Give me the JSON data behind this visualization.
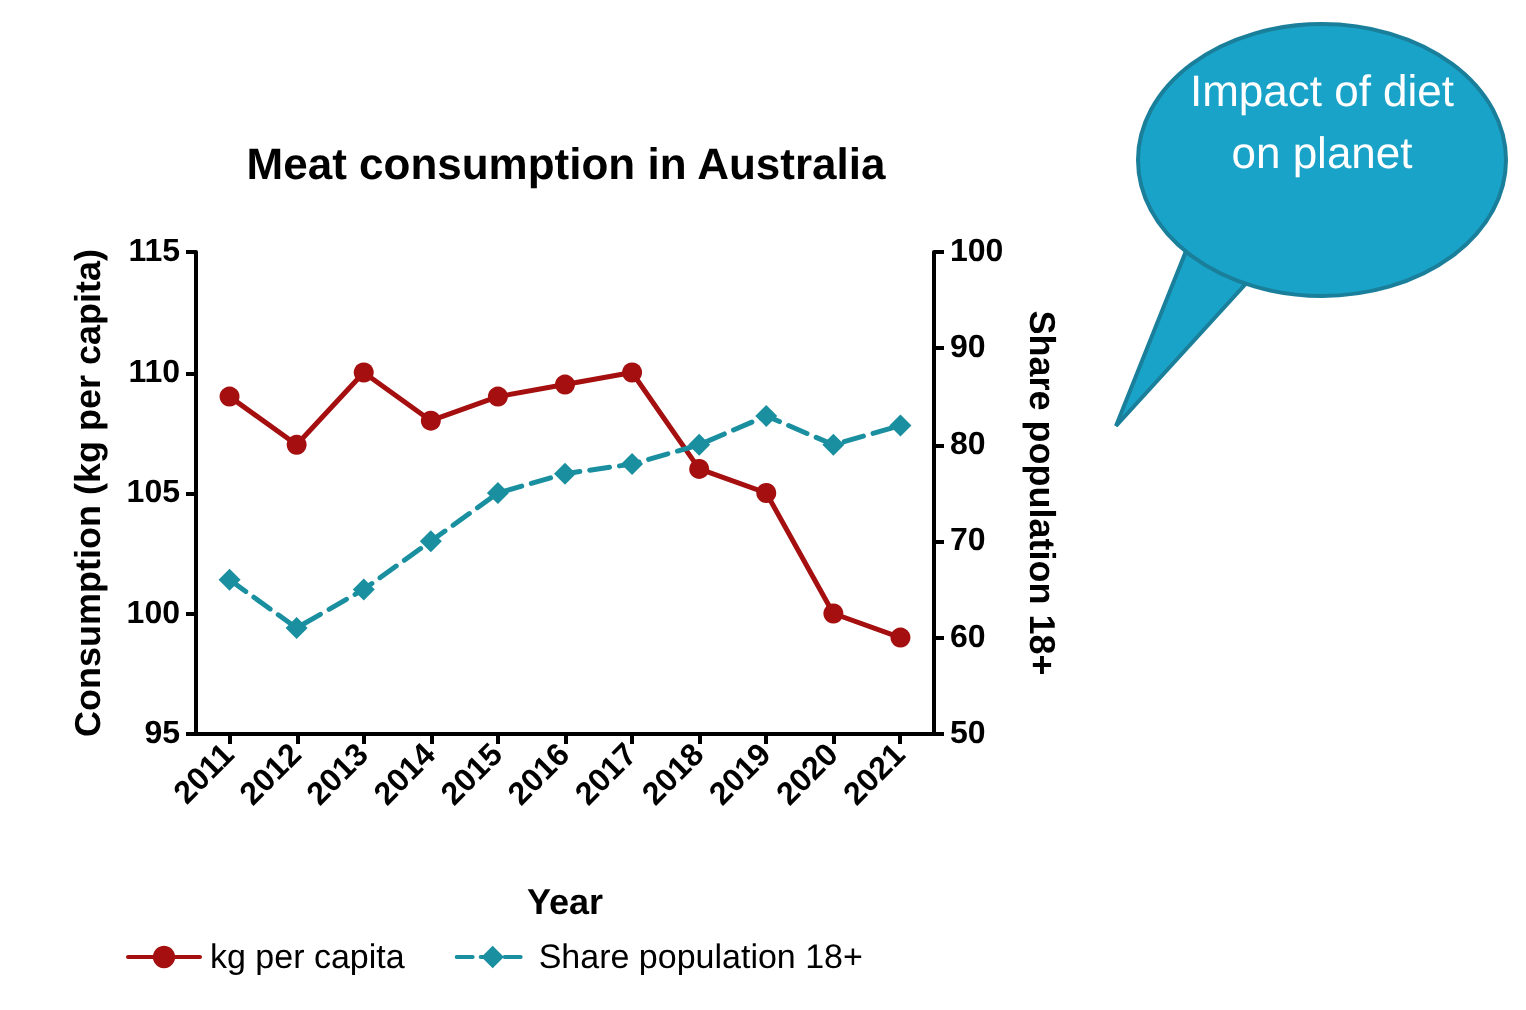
{
  "chart_data": {
    "type": "line",
    "title": "Meat consumption in Australia",
    "xlabel": "Year",
    "ylabel": "Consumption (kg per capita)",
    "y2label": "Share population 18+",
    "annotations": [
      "Impact of diet on planet"
    ],
    "categories": [
      "2011",
      "2012",
      "2013",
      "2014",
      "2015",
      "2016",
      "2017",
      "2018",
      "2019",
      "2020",
      "2021"
    ],
    "series": [
      {
        "name": "kg per capita",
        "color": "#a50f0f",
        "marker": "circle",
        "line_style": "solid",
        "values": [
          109,
          107,
          110,
          108,
          109,
          109.5,
          110,
          106,
          105,
          100,
          99
        ]
      },
      {
        "name": "Share population 18+",
        "color": "#1a8fa0",
        "marker": "diamond",
        "line_style": "dashed",
        "axis": "y2",
        "values": [
          66,
          61,
          65,
          70,
          75,
          77,
          78,
          80,
          83,
          80,
          82
        ]
      }
    ],
    "ylim": [
      95,
      115
    ],
    "yticks": [
      95,
      100,
      105,
      110,
      115
    ],
    "y2lim": [
      50,
      100
    ],
    "y2ticks": [
      50,
      60,
      70,
      80,
      90,
      100
    ],
    "grid": false,
    "legend": "bottom left"
  }
}
